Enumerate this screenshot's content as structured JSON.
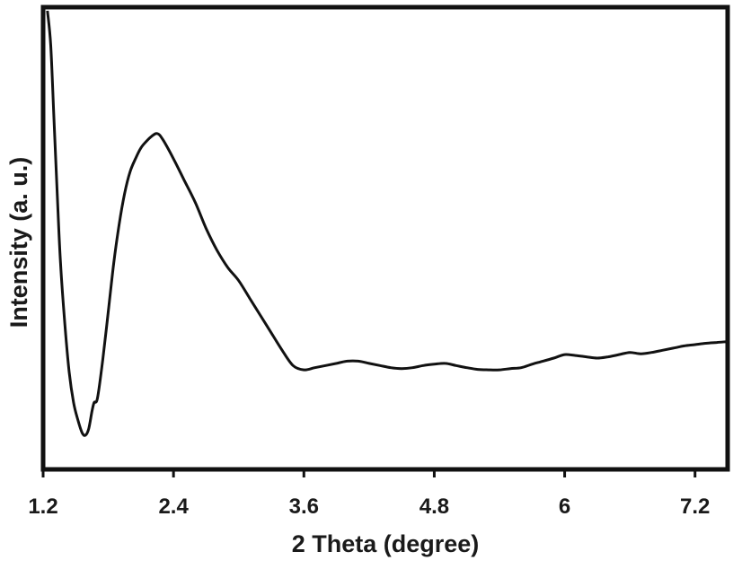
{
  "chart_data": {
    "type": "line",
    "title": "",
    "xlabel": "2 Theta (degree)",
    "ylabel": "Intensity (a. u.)",
    "xlim": [
      1.2,
      7.5
    ],
    "ylim": [
      0,
      100
    ],
    "x_ticks": [
      "1.2",
      "2.4",
      "3.6",
      "4.8",
      "6",
      "7.2"
    ],
    "y_ticks_shown": false,
    "grid": false,
    "legend": "none",
    "line_color": "#111111",
    "series": [
      {
        "x": [
          1.24,
          1.27,
          1.3,
          1.33,
          1.36,
          1.4,
          1.44,
          1.48,
          1.52,
          1.56,
          1.59,
          1.62,
          1.65,
          1.67,
          1.7,
          1.75,
          1.8,
          1.85,
          1.9,
          1.95,
          2.0,
          2.05,
          2.1,
          2.15,
          2.2,
          2.25,
          2.3,
          2.4,
          2.5,
          2.6,
          2.7,
          2.8,
          2.9,
          3.0,
          3.1,
          3.2,
          3.3,
          3.4,
          3.5,
          3.6,
          3.7,
          3.8,
          3.9,
          4.0,
          4.1,
          4.2,
          4.3,
          4.4,
          4.5,
          4.6,
          4.7,
          4.8,
          4.9,
          5.0,
          5.1,
          5.2,
          5.3,
          5.4,
          5.5,
          5.6,
          5.7,
          5.8,
          5.9,
          6.0,
          6.1,
          6.2,
          6.3,
          6.4,
          6.5,
          6.6,
          6.7,
          6.8,
          6.9,
          7.0,
          7.1,
          7.2,
          7.3,
          7.4,
          7.5
        ],
        "y": [
          100,
          92,
          75,
          58,
          42,
          28,
          17,
          10,
          6,
          3,
          2.5,
          4,
          8,
          10,
          11,
          20,
          31,
          42,
          51,
          58,
          63,
          66,
          68.5,
          70,
          71.2,
          71.8,
          70.5,
          66,
          61,
          56,
          50,
          45,
          41,
          38,
          34,
          30,
          26,
          22,
          18.5,
          17.5,
          18,
          18.5,
          19,
          19.5,
          19.5,
          19,
          18.5,
          18,
          17.8,
          18,
          18.5,
          18.8,
          19,
          18.5,
          18,
          17.6,
          17.5,
          17.5,
          17.8,
          18,
          18.8,
          19.5,
          20.2,
          21,
          20.8,
          20.5,
          20.2,
          20.5,
          21,
          21.5,
          21.2,
          21.5,
          22,
          22.5,
          23,
          23.3,
          23.6,
          23.8,
          24
        ]
      }
    ]
  }
}
